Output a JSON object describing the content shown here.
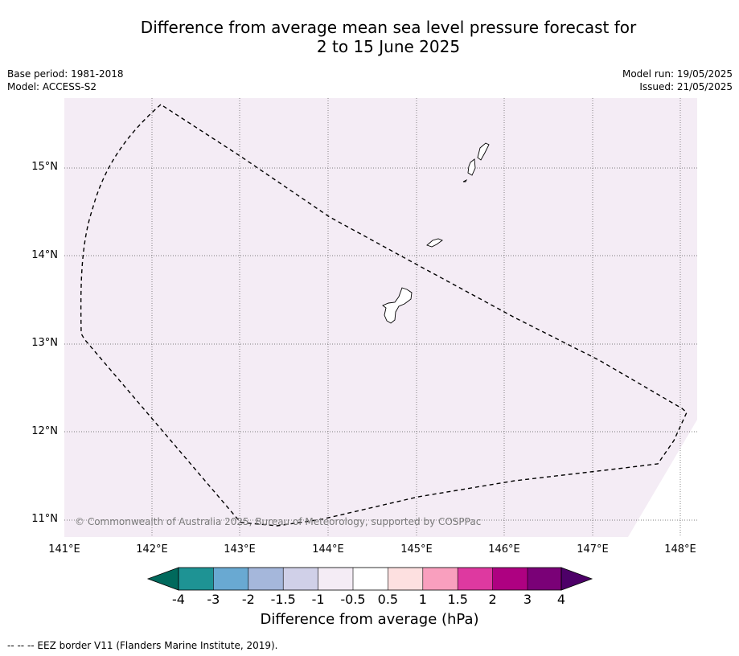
{
  "title": {
    "line1": "Difference from average mean sea level pressure forecast for",
    "line2": "2 to 15 June 2025"
  },
  "meta": {
    "base_period": "Base period: 1981-2018",
    "model": "Model: ACCESS-S2",
    "model_run": "Model run: 19/05/2025",
    "issued": "Issued: 21/05/2025"
  },
  "map": {
    "lat_labels": [
      "15°N",
      "14°N",
      "13°N",
      "12°N",
      "11°N"
    ],
    "lon_labels": [
      "141°E",
      "142°E",
      "143°E",
      "144°E",
      "145°E",
      "146°E",
      "147°E",
      "148°E"
    ],
    "fill_color": "#f4ecf5",
    "copyright": "© Commonwealth of Australia 2025, Bureau of Meteorology, supported by COSPPac"
  },
  "colorbar": {
    "tick_labels": [
      "-4",
      "-3",
      "-2",
      "-1.5",
      "-1",
      "-0.5",
      "0.5",
      "1",
      "1.5",
      "2",
      "3",
      "4"
    ],
    "colors": [
      "#00695c",
      "#1e9394",
      "#69a9d2",
      "#a5b7db",
      "#d0d0e8",
      "#f4ecf5",
      "#ffffff",
      "#fde0e0",
      "#f99fbe",
      "#de39a0",
      "#ae0181",
      "#7a0177",
      "#4d0068"
    ],
    "label": "Difference from average (hPa)"
  },
  "footnote": "--  --  -- EEZ border V11 (Flanders Marine Institute, 2019)."
}
